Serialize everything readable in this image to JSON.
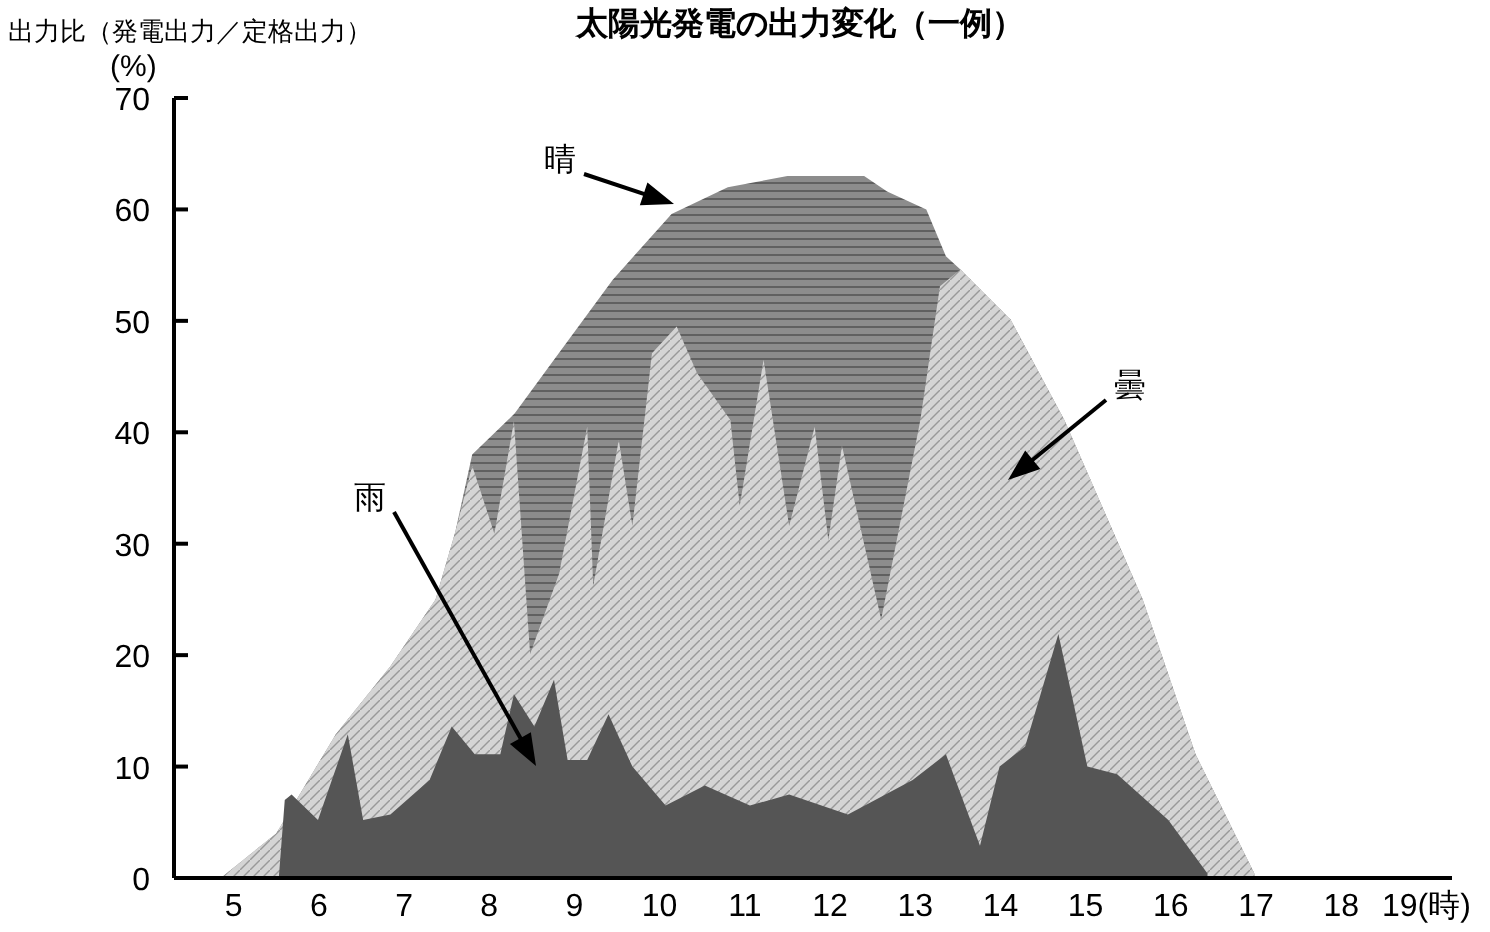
{
  "chart_data": {
    "type": "area",
    "title": "太陽光発電の出力変化（一例）",
    "ylabel": "出力比（発電出力／定格出力）\n(%)",
    "xlim": [
      4.3,
      19.3
    ],
    "xticks": [
      5,
      6,
      7,
      8,
      9,
      10,
      11,
      12,
      13,
      14,
      15,
      16,
      17,
      18,
      {
        "value": 19,
        "label": "19(時)"
      }
    ],
    "ylim": [
      0,
      70
    ],
    "yticks": [
      0,
      10,
      20,
      30,
      40,
      50,
      60,
      70
    ],
    "grid": false,
    "series": [
      {
        "name": "晴",
        "color": "#8c8c8c",
        "x": [
          4.85,
          5.5,
          6.2,
          6.84,
          7.37,
          7.6,
          7.8,
          8.3,
          8.76,
          9.45,
          10.14,
          10.8,
          11.5,
          12.4,
          12.67,
          13.13,
          13.36,
          13.53,
          14.12,
          14.75,
          15.67,
          16.29,
          16.98
        ],
        "values": [
          0,
          4,
          12.9,
          19,
          25,
          31,
          38,
          41.7,
          46.5,
          53.7,
          59.6,
          62,
          63,
          63,
          61.6,
          60,
          55.8,
          54.6,
          50.1,
          41.1,
          25,
          11.1,
          0.4
        ]
      },
      {
        "name": "曇",
        "color": "#d4d4d4",
        "x": [
          4.85,
          5.5,
          6.2,
          6.84,
          7.37,
          7.6,
          7.8,
          8.06,
          8.29,
          8.48,
          8.82,
          9.15,
          9.22,
          9.52,
          9.68,
          9.91,
          10.2,
          10.44,
          10.83,
          10.94,
          11.22,
          11.52,
          11.82,
          11.98,
          12.14,
          12.6,
          13.06,
          13.29,
          13.53,
          14.12,
          14.75,
          15.67,
          16.29,
          16.98
        ],
        "values": [
          0,
          4,
          12.9,
          19,
          25,
          31,
          37,
          30.9,
          41,
          20.1,
          27.3,
          40.5,
          26.2,
          39.3,
          31.6,
          47.1,
          49.5,
          45.3,
          41.1,
          33.4,
          46.5,
          31.6,
          40.5,
          30.3,
          38.8,
          23.2,
          41.1,
          53.1,
          54.6,
          50.1,
          41.1,
          25,
          11.1,
          0.4
        ]
      },
      {
        "name": "雨",
        "color": "#555555",
        "x": [
          5.53,
          5.6,
          5.68,
          5.99,
          6.34,
          6.52,
          6.84,
          7.3,
          7.56,
          7.83,
          8.13,
          8.29,
          8.53,
          8.76,
          8.92,
          9.15,
          9.4,
          9.68,
          10.07,
          10.53,
          11.06,
          11.52,
          12.21,
          12.97,
          13.36,
          13.76,
          13.99,
          14.29,
          14.68,
          15.02,
          15.37,
          15.97,
          16.43
        ],
        "values": [
          0,
          7,
          7.5,
          5.2,
          12.9,
          5.2,
          5.7,
          8.8,
          13.6,
          11.1,
          11.1,
          16.5,
          13.6,
          17.8,
          10.6,
          10.6,
          14.7,
          10,
          6.5,
          8.3,
          6.5,
          7.5,
          5.7,
          8.8,
          11.1,
          2.9,
          10,
          11.8,
          21.9,
          10,
          9.3,
          5.2,
          0.4
        ]
      }
    ]
  }
}
